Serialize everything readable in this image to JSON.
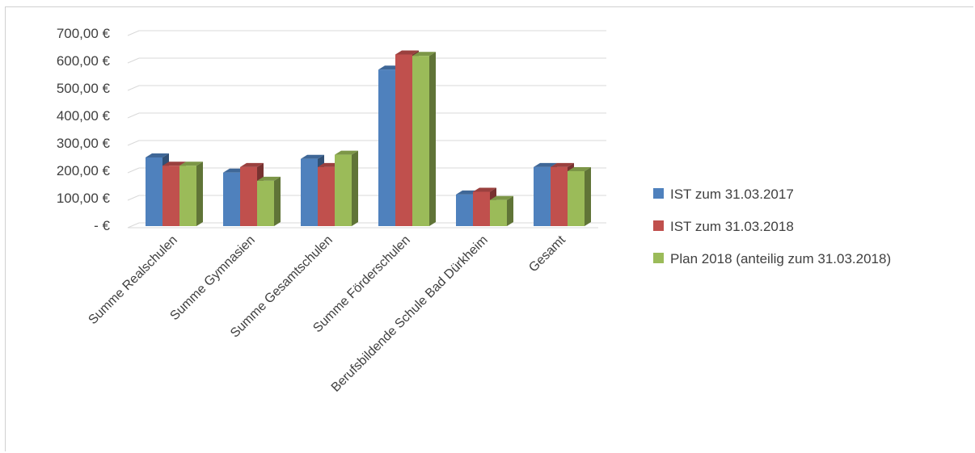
{
  "chart_data": {
    "type": "bar",
    "categories": [
      "Summe Realschulen",
      "Summe Gymnasien",
      "Summe Gesamtschulen",
      "Summe Förderschulen",
      "Berufsbildende Schule Bad Dürkheim",
      "Gesamt"
    ],
    "series": [
      {
        "name": "IST zum 31.03.2017",
        "color": "#4f81bd",
        "values": [
          250,
          195,
          245,
          570,
          115,
          215
        ]
      },
      {
        "name": "IST zum 31.03.2018",
        "color": "#c0504d",
        "values": [
          220,
          215,
          215,
          625,
          125,
          215
        ]
      },
      {
        "name": "Plan 2018 (anteilig zum 31.03.2018)",
        "color": "#9bbb59",
        "values": [
          220,
          165,
          260,
          620,
          95,
          200
        ]
      }
    ],
    "ylim": [
      0,
      700
    ],
    "yticks": [
      {
        "value": 0,
        "label": "-  €"
      },
      {
        "value": 100,
        "label": "100,00 €"
      },
      {
        "value": 200,
        "label": "200,00 €"
      },
      {
        "value": 300,
        "label": "300,00 €"
      },
      {
        "value": 400,
        "label": "400,00 €"
      },
      {
        "value": 500,
        "label": "500,00 €"
      },
      {
        "value": 600,
        "label": "600,00 €"
      },
      {
        "value": 700,
        "label": "700,00 €"
      }
    ],
    "style": "3d-clustered-column",
    "grid": true,
    "legend_position": "right"
  }
}
